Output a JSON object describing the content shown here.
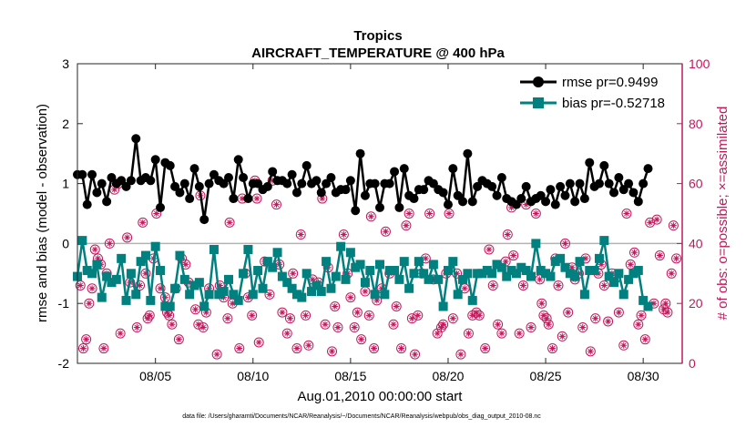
{
  "chart_data": {
    "type": "line",
    "title": "Tropics",
    "subtitle": "AIRCRAFT_TEMPERATURE @ 400 hPa",
    "xlabel": "Aug.01,2010 00:00:00 start",
    "ylabel": "rmse and bias (model - observation)",
    "y2label": "# of obs: o=possible; ×=assimilated",
    "footnote": "data file: /Users/gharamti/Documents/NCAR/Reanalysis/~/Documents/NCAR/Reanalysis/webpub/obs_diag_output_2010-08.nc",
    "xlim": [
      1,
      32
    ],
    "ylim": [
      -2,
      3
    ],
    "y2lim": [
      0,
      100
    ],
    "xticks": [
      5,
      10,
      15,
      20,
      25,
      30
    ],
    "xticklabels": [
      "08/05",
      "08/10",
      "08/15",
      "08/20",
      "08/25",
      "08/30"
    ],
    "yticks": [
      -2,
      -1,
      0,
      1,
      2,
      3
    ],
    "y2ticks": [
      0,
      20,
      40,
      60,
      80,
      100
    ],
    "legend_position": "top-right",
    "colors": {
      "rmse": "#000000",
      "bias": "#00807f",
      "obs": "#c2185b",
      "zero": "#b3b3b3"
    },
    "series": [
      {
        "name": "rmse pr=0.9499",
        "marker": "circle",
        "start_day": 1.0,
        "step": 0.25,
        "values": [
          1.15,
          1.15,
          0.65,
          1.15,
          0.85,
          1.0,
          0.7,
          1.1,
          1.0,
          1.05,
          0.95,
          1.05,
          1.75,
          1.05,
          1.1,
          1.05,
          1.4,
          0.6,
          1.35,
          1.3,
          0.95,
          0.85,
          1.0,
          0.75,
          1.25,
          0.95,
          0.4,
          1.0,
          1.15,
          1.05,
          1.0,
          1.1,
          0.75,
          1.4,
          1.1,
          0.75,
          1.0,
          1.0,
          0.9,
          0.95,
          1.2,
          1.05,
          1.05,
          1.0,
          1.15,
          0.85,
          1.0,
          1.3,
          1.0,
          1.05,
          0.85,
          1.0,
          1.1,
          0.85,
          0.9,
          0.9,
          1.05,
          0.55,
          1.5,
          0.8,
          1.0,
          1.0,
          0.6,
          1.0,
          1.0,
          1.2,
          0.6,
          1.25,
          0.8,
          0.75,
          0.9,
          0.9,
          1.05,
          1.0,
          0.9,
          0.85,
          0.65,
          1.25,
          0.8,
          0.7,
          1.5,
          0.7,
          0.95,
          1.05,
          1.0,
          0.95,
          0.8,
          1.1,
          0.75,
          0.7,
          0.65,
          0.75,
          0.95,
          0.7,
          0.75,
          0.8,
          0.7,
          0.9,
          0.65,
          0.95,
          0.8,
          1.0,
          0.7,
          1.0,
          0.75,
          1.35,
          0.95,
          1.0,
          1.3,
          1.0,
          0.85,
          1.1,
          0.9,
          1.0,
          0.85,
          0.7,
          1.0,
          1.25
        ]
      },
      {
        "name": "bias pr=-0.52718",
        "marker": "square",
        "start_day": 1.0,
        "step": 0.25,
        "values": [
          -0.55,
          0.05,
          -0.45,
          -0.5,
          -0.35,
          -0.9,
          -0.55,
          -0.65,
          -0.6,
          -0.25,
          -0.95,
          -0.5,
          -0.85,
          -0.3,
          -0.2,
          -0.95,
          -0.05,
          -0.45,
          -1.05,
          -1.05,
          -0.75,
          -0.2,
          -0.6,
          -0.85,
          -0.7,
          -0.65,
          -1.05,
          -0.85,
          -0.1,
          -0.85,
          -0.8,
          -0.6,
          -0.85,
          -0.95,
          -0.5,
          -0.1,
          -0.85,
          -0.45,
          -0.75,
          -0.3,
          -0.4,
          -0.15,
          -0.55,
          -0.65,
          -0.75,
          -0.85,
          -0.9,
          -0.5,
          -0.8,
          -0.7,
          -0.8,
          -0.3,
          -0.75,
          -0.55,
          -0.05,
          -0.6,
          -0.15,
          -0.4,
          -0.35,
          -0.65,
          -0.45,
          -0.85,
          -0.35,
          -0.85,
          -0.45,
          -0.45,
          -0.6,
          -0.3,
          -0.75,
          -0.5,
          -0.3,
          -0.5,
          -0.6,
          -0.35,
          -0.6,
          -1.05,
          -0.45,
          -0.3,
          -0.85,
          -0.6,
          -0.5,
          -0.95,
          -0.5,
          -0.5,
          -0.45,
          -0.5,
          -0.35,
          -0.4,
          -0.55,
          -0.45,
          -0.5,
          -0.4,
          -0.45,
          -0.55,
          0.0,
          -0.45,
          -0.5,
          -0.55,
          -0.3,
          -0.25,
          -0.4,
          -0.5,
          -0.55,
          -0.3,
          -0.85,
          -0.45,
          -0.45,
          -0.25,
          0.05,
          -0.55,
          -0.65,
          -0.5,
          -0.85,
          -0.6,
          -0.5,
          -0.45,
          -0.95,
          -1.05
        ]
      },
      {
        "name": "# of obs: possible / assimilated",
        "axis": "right",
        "points": [
          [
            1.15,
            26
          ],
          [
            1.3,
            5
          ],
          [
            1.45,
            8
          ],
          [
            1.6,
            20
          ],
          [
            1.75,
            25
          ],
          [
            1.9,
            38
          ],
          [
            2.05,
            35
          ],
          [
            2.2,
            33
          ],
          [
            2.35,
            5
          ],
          [
            2.5,
            30
          ],
          [
            2.65,
            40
          ],
          [
            2.9,
            58
          ],
          [
            3.1,
            60
          ],
          [
            3.2,
            10
          ],
          [
            3.55,
            42
          ],
          [
            3.7,
            27
          ],
          [
            4.05,
            12
          ],
          [
            4.2,
            26
          ],
          [
            4.35,
            47
          ],
          [
            4.5,
            30
          ],
          [
            4.6,
            15
          ],
          [
            4.7,
            16
          ],
          [
            4.9,
            35
          ],
          [
            5.05,
            50
          ],
          [
            5.25,
            25
          ],
          [
            5.5,
            22
          ],
          [
            5.6,
            17
          ],
          [
            5.7,
            16
          ],
          [
            5.85,
            13
          ],
          [
            6.05,
            25
          ],
          [
            6.2,
            8
          ],
          [
            6.35,
            35
          ],
          [
            6.55,
            33
          ],
          [
            6.7,
            27
          ],
          [
            7.05,
            18
          ],
          [
            7.2,
            13
          ],
          [
            7.3,
            56
          ],
          [
            7.45,
            12
          ],
          [
            7.6,
            17
          ],
          [
            7.75,
            25
          ],
          [
            8.15,
            3
          ],
          [
            8.3,
            26
          ],
          [
            8.5,
            22
          ],
          [
            8.7,
            15
          ],
          [
            8.8,
            47
          ],
          [
            8.95,
            20
          ],
          [
            9.3,
            5
          ],
          [
            9.45,
            55
          ],
          [
            9.6,
            30
          ],
          [
            9.75,
            22
          ],
          [
            9.95,
            16
          ],
          [
            10.1,
            61
          ],
          [
            10.2,
            55
          ],
          [
            10.3,
            7
          ],
          [
            10.6,
            34
          ],
          [
            10.85,
            23
          ],
          [
            11.0,
            61
          ],
          [
            11.2,
            53
          ],
          [
            11.35,
            33
          ],
          [
            11.5,
            17
          ],
          [
            11.75,
            10
          ],
          [
            11.9,
            15
          ],
          [
            12.05,
            30
          ],
          [
            12.25,
            5
          ],
          [
            12.45,
            43
          ],
          [
            12.7,
            16
          ],
          [
            12.85,
            6
          ],
          [
            13.05,
            28
          ],
          [
            13.35,
            27
          ],
          [
            13.55,
            55
          ],
          [
            13.7,
            13
          ],
          [
            13.85,
            32
          ],
          [
            14.05,
            4
          ],
          [
            14.2,
            19
          ],
          [
            14.35,
            12
          ],
          [
            14.65,
            43
          ],
          [
            14.85,
            30
          ],
          [
            15.0,
            22
          ],
          [
            15.2,
            12
          ],
          [
            15.35,
            17
          ],
          [
            15.55,
            8
          ],
          [
            15.75,
            24
          ],
          [
            15.95,
            16
          ],
          [
            16.05,
            49
          ],
          [
            16.2,
            5
          ],
          [
            16.35,
            21
          ],
          [
            16.6,
            25
          ],
          [
            16.8,
            44
          ],
          [
            17.0,
            30
          ],
          [
            17.2,
            13
          ],
          [
            17.35,
            19
          ],
          [
            17.6,
            5
          ],
          [
            17.85,
            46
          ],
          [
            18.0,
            50
          ],
          [
            18.15,
            15
          ],
          [
            18.3,
            3
          ],
          [
            18.45,
            16
          ],
          [
            18.65,
            30
          ],
          [
            18.85,
            35
          ],
          [
            19.05,
            50
          ],
          [
            19.25,
            28
          ],
          [
            19.45,
            10
          ],
          [
            19.65,
            12
          ],
          [
            19.75,
            13
          ],
          [
            19.9,
            30
          ],
          [
            20.05,
            50
          ],
          [
            20.25,
            15
          ],
          [
            20.45,
            30
          ],
          [
            20.65,
            3
          ],
          [
            20.85,
            25
          ],
          [
            21.05,
            10
          ],
          [
            21.25,
            16
          ],
          [
            21.45,
            17
          ],
          [
            21.6,
            16
          ],
          [
            21.9,
            5
          ],
          [
            22.1,
            38
          ],
          [
            22.3,
            26
          ],
          [
            22.55,
            13
          ],
          [
            22.75,
            10
          ],
          [
            22.95,
            34
          ],
          [
            23.05,
            43
          ],
          [
            23.25,
            52
          ],
          [
            23.35,
            36
          ],
          [
            23.65,
            10
          ],
          [
            23.85,
            26
          ],
          [
            24.0,
            53
          ],
          [
            24.25,
            12
          ],
          [
            24.5,
            50
          ],
          [
            24.7,
            28
          ],
          [
            24.8,
            20
          ],
          [
            24.9,
            16
          ],
          [
            25.05,
            15
          ],
          [
            25.15,
            13
          ],
          [
            25.35,
            5
          ],
          [
            25.5,
            35
          ],
          [
            25.65,
            26
          ],
          [
            25.85,
            9
          ],
          [
            26.0,
            40
          ],
          [
            26.15,
            17
          ],
          [
            26.35,
            32
          ],
          [
            26.5,
            28
          ],
          [
            26.7,
            30
          ],
          [
            26.9,
            12
          ],
          [
            27.05,
            35
          ],
          [
            27.3,
            4
          ],
          [
            27.55,
            15
          ],
          [
            27.7,
            30
          ],
          [
            27.85,
            33
          ],
          [
            28.0,
            26
          ],
          [
            28.2,
            14
          ],
          [
            28.4,
            30
          ],
          [
            28.55,
            28
          ],
          [
            28.75,
            17
          ],
          [
            29.0,
            6
          ],
          [
            29.15,
            50
          ],
          [
            29.35,
            33
          ],
          [
            29.55,
            37
          ],
          [
            29.75,
            13
          ],
          [
            29.9,
            16
          ],
          [
            30.1,
            8
          ],
          [
            30.35,
            47
          ],
          [
            30.55,
            20
          ],
          [
            30.7,
            48
          ],
          [
            30.85,
            36
          ],
          [
            31.05,
            18
          ],
          [
            31.15,
            20
          ],
          [
            31.25,
            17
          ],
          [
            31.45,
            30
          ],
          [
            31.55,
            46
          ],
          [
            31.7,
            35
          ]
        ]
      }
    ]
  }
}
